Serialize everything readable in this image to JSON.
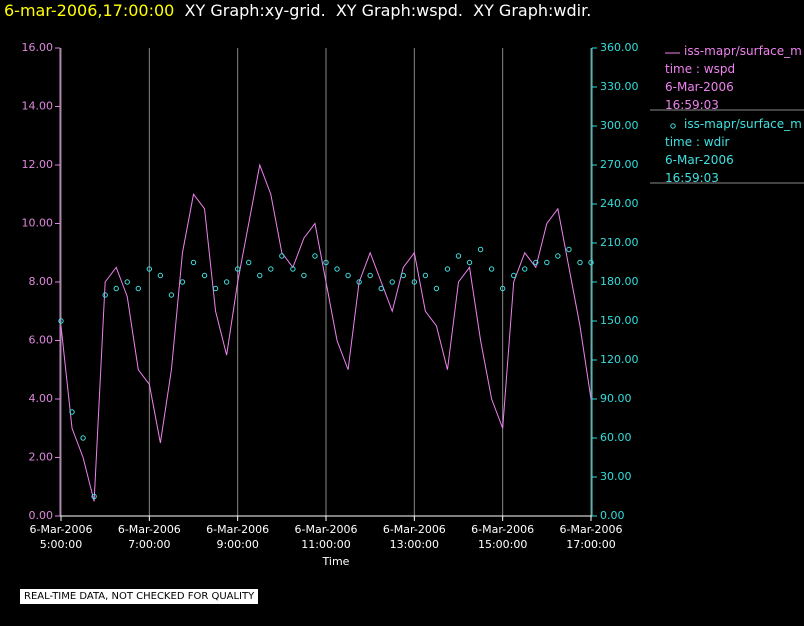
{
  "chart_data": {
    "type": "line",
    "header_time": "6-mar-2006,17:00:00",
    "title": "XY Graph:xy-grid.  XY Graph:wspd.  XY Graph:wdir.",
    "x_label": "Time",
    "note": "REAL-TIME DATA, NOT CHECKED FOR QUALITY",
    "x": [
      5,
      5.25,
      5.5,
      5.75,
      6,
      6.25,
      6.5,
      6.75,
      7,
      7.25,
      7.5,
      7.75,
      8,
      8.25,
      8.5,
      8.75,
      9,
      9.25,
      9.5,
      9.75,
      10,
      10.25,
      10.5,
      10.75,
      11,
      11.25,
      11.5,
      11.75,
      12,
      12.25,
      12.5,
      12.75,
      13,
      13.25,
      13.5,
      13.75,
      14,
      14.25,
      14.5,
      14.75,
      15,
      15.25,
      15.5,
      15.75,
      16,
      16.25,
      16.5,
      16.75,
      17
    ],
    "xlim": [
      5,
      17
    ],
    "xticks": [
      {
        "value": 5,
        "label": "6-Mar-2006 5:00:00"
      },
      {
        "value": 7,
        "label": "6-Mar-2006 7:00:00"
      },
      {
        "value": 9,
        "label": "6-Mar-2006 9:00:00"
      },
      {
        "value": 11,
        "label": "6-Mar-2006 11:00:00"
      },
      {
        "value": 13,
        "label": "6-Mar-2006 13:00:00"
      },
      {
        "value": 15,
        "label": "6-Mar-2006 15:00:00"
      },
      {
        "value": 17,
        "label": "6-Mar-2006 17:00:00"
      }
    ],
    "ylim": [
      0,
      16
    ],
    "yticks": [
      {
        "value": 0,
        "label": "0.00"
      },
      {
        "value": 2,
        "label": "2.00"
      },
      {
        "value": 4,
        "label": "4.00"
      },
      {
        "value": 6,
        "label": "6.00"
      },
      {
        "value": 8,
        "label": "8.00"
      },
      {
        "value": 10,
        "label": "10.00"
      },
      {
        "value": 12,
        "label": "12.00"
      },
      {
        "value": 14,
        "label": "14.00"
      },
      {
        "value": 16,
        "label": "16.00"
      }
    ],
    "y2lim": [
      0,
      360
    ],
    "y2ticks": [
      {
        "value": 0,
        "label": "0.00"
      },
      {
        "value": 30,
        "label": "30.00"
      },
      {
        "value": 60,
        "label": "60.00"
      },
      {
        "value": 90,
        "label": "90.00"
      },
      {
        "value": 120,
        "label": "120.00"
      },
      {
        "value": 150,
        "label": "150.00"
      },
      {
        "value": 180,
        "label": "180.00"
      },
      {
        "value": 210,
        "label": "210.00"
      },
      {
        "value": 240,
        "label": "240.00"
      },
      {
        "value": 270,
        "label": "270.00"
      },
      {
        "value": 300,
        "label": "300.00"
      },
      {
        "value": 330,
        "label": "330.00"
      },
      {
        "value": 360,
        "label": "360.00"
      }
    ],
    "y_color": "#dd88dd",
    "y2_color": "#33dddd",
    "series": [
      {
        "name": "iss-mapr/surface_m",
        "style": "line",
        "color": "#ee82ee",
        "legend_text": [
          "time : wspd",
          "6-Mar-2006",
          "16:59:03"
        ],
        "values": [
          6.5,
          3,
          2,
          0.5,
          8,
          8.5,
          7.5,
          5,
          4.5,
          2.5,
          5,
          9,
          11,
          10.5,
          7,
          5.5,
          8,
          10,
          12,
          11,
          9,
          8.5,
          9.5,
          10,
          8,
          6,
          5,
          8,
          9,
          8,
          7,
          8.5,
          9,
          7,
          6.5,
          5,
          8,
          8.5,
          6,
          4,
          3,
          8,
          9,
          8.5,
          10,
          10.5,
          8.5,
          6.5,
          4
        ]
      },
      {
        "name": "iss-mapr/surface_m",
        "style": "markers",
        "axis": "y2",
        "color": "#40e0e0",
        "legend_text": [
          "time : wdir",
          "6-Mar-2006",
          "16:59:03"
        ],
        "values": [
          150,
          80,
          60,
          15,
          170,
          175,
          180,
          175,
          190,
          185,
          170,
          180,
          195,
          185,
          175,
          180,
          190,
          195,
          185,
          190,
          200,
          190,
          185,
          200,
          195,
          190,
          185,
          180,
          185,
          175,
          180,
          185,
          180,
          185,
          175,
          190,
          200,
          195,
          205,
          190,
          175,
          185,
          190,
          195,
          195,
          200,
          205,
          195,
          195
        ]
      }
    ]
  }
}
